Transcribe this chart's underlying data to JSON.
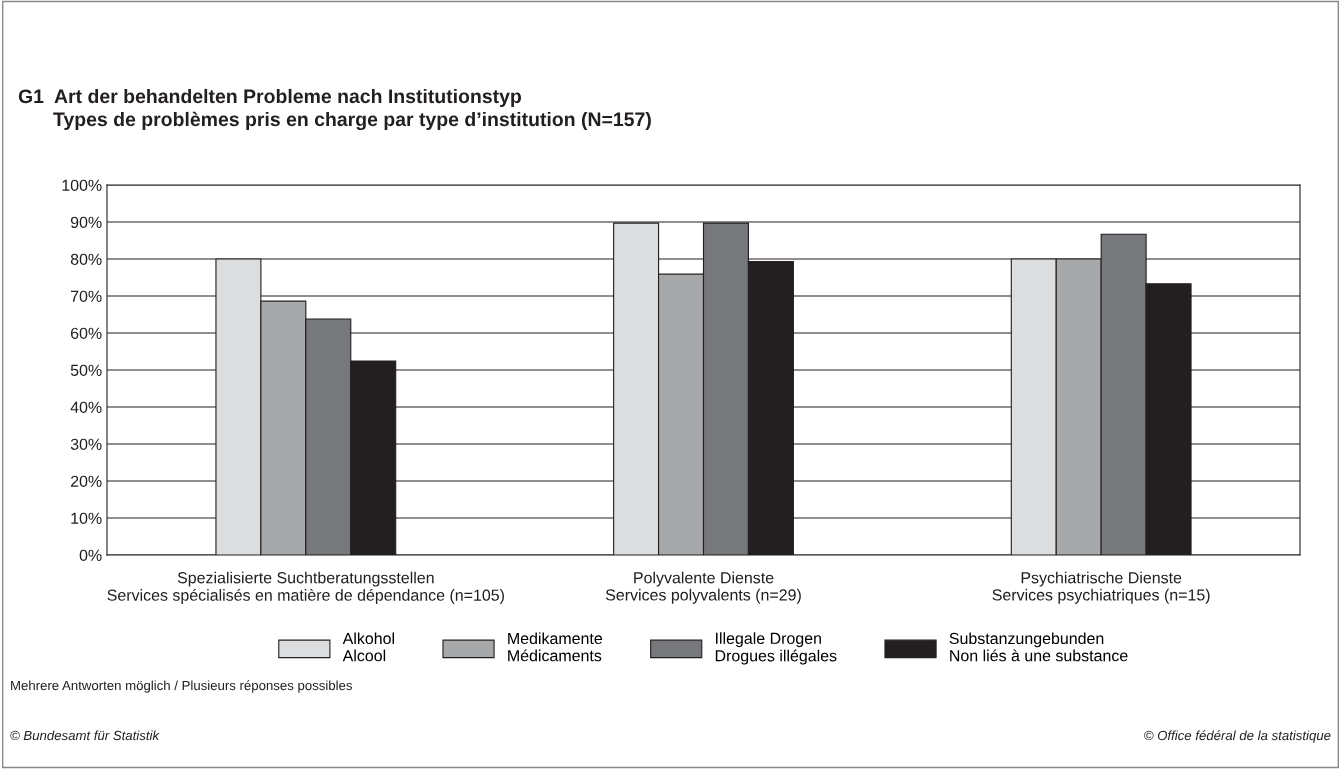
{
  "chart_data": {
    "type": "bar",
    "title": "G1  Art der behandelten Probleme nach Institutionstyp",
    "subtitle": "Types de problèmes pris en charge par type d’institution (N=157)",
    "categories": [
      "Spezialisierte Suchtberatungsstellen\nServices spécialisés en matière de dépendance (n=105)",
      "Polyvalente Dienste\nServices polyvalents (n=29)",
      "Psychiatrische Dienste\nServices psychiatriques (n=15)"
    ],
    "series": [
      {
        "name": "Alkohol\nAlcool",
        "color": "#dcdddf",
        "values": [
          80,
          89.7,
          80
        ]
      },
      {
        "name": "Medikamente\nMédicaments",
        "color": "#a7a8aa",
        "values": [
          68.6,
          75.9,
          80
        ]
      },
      {
        "name": "Illegale Drogen\nDrogues illégales",
        "color": "#77787b",
        "values": [
          63.8,
          89.7,
          86.7
        ]
      },
      {
        "name": "Substanzungebunden\nNon liés à une substance",
        "color": "#231f20",
        "values": [
          52.4,
          79.3,
          73.3
        ]
      }
    ],
    "ylim": [
      0,
      100
    ],
    "yticks": [
      {
        "value": 0,
        "label": "0%"
      },
      {
        "value": 10,
        "label": "10%"
      },
      {
        "value": 20,
        "label": "20%"
      },
      {
        "value": 30,
        "label": "30%"
      },
      {
        "value": 40,
        "label": "40%"
      },
      {
        "value": 50,
        "label": "50%"
      },
      {
        "value": 60,
        "label": "60%"
      },
      {
        "value": 70,
        "label": "70%"
      },
      {
        "value": 80,
        "label": "80%"
      },
      {
        "value": 90,
        "label": "90%"
      },
      {
        "value": 100,
        "label": "100%"
      }
    ],
    "grid": "y",
    "legend": "bottom",
    "annotations": [
      "Mehrere Antworten möglich / Plusieurs réponses possibles",
      "© Bundesamt für Statistik",
      "© Office fédéral de la statistique"
    ]
  }
}
